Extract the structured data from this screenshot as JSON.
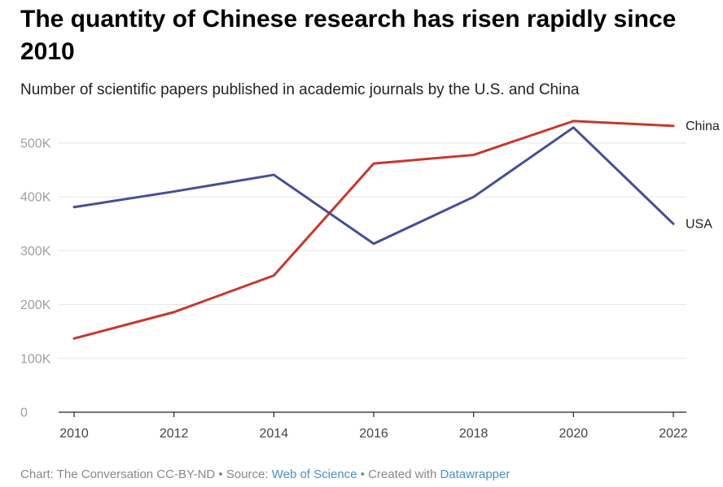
{
  "title": "The quantity of Chinese research has risen rapidly since 2010",
  "subtitle": "Number of scientific papers published in academic journals by the U.S. and China",
  "footer": {
    "prefix": "Chart: The Conversation CC-BY-ND",
    "sep1": " • Source: ",
    "source": "Web of Science",
    "sep2": " • Created with ",
    "tool": "Datawrapper"
  },
  "colors": {
    "China": "#c8372d",
    "USA": "#454f96",
    "grid": "#e6e6e6",
    "axis": "#222222"
  },
  "chart_data": {
    "type": "line",
    "title": "The quantity of Chinese research has risen rapidly since 2010",
    "subtitle": "Number of scientific papers published in academic journals by the U.S. and China",
    "xlabel": "",
    "ylabel": "",
    "x": [
      2010,
      2012,
      2014,
      2016,
      2018,
      2020,
      2022
    ],
    "xlim": [
      2010,
      2022
    ],
    "ylim": [
      0,
      550000
    ],
    "y_ticks": [
      {
        "value": 0,
        "label": "0"
      },
      {
        "value": 100000,
        "label": "100K"
      },
      {
        "value": 200000,
        "label": "200K"
      },
      {
        "value": 300000,
        "label": "300K"
      },
      {
        "value": 400000,
        "label": "400K"
      },
      {
        "value": 500000,
        "label": "500K"
      }
    ],
    "x_ticks": [
      {
        "value": 2010,
        "label": "2010"
      },
      {
        "value": 2012,
        "label": "2012"
      },
      {
        "value": 2014,
        "label": "2014"
      },
      {
        "value": 2016,
        "label": "2016"
      },
      {
        "value": 2018,
        "label": "2018"
      },
      {
        "value": 2020,
        "label": "2020"
      },
      {
        "value": 2022,
        "label": "2022"
      }
    ],
    "grid": true,
    "legend": "direct labels at line ends",
    "series": [
      {
        "name": "China",
        "values": [
          137000,
          186000,
          254000,
          462000,
          478000,
          541000,
          532000
        ]
      },
      {
        "name": "USA",
        "values": [
          381000,
          410000,
          441000,
          313000,
          400000,
          529000,
          350000
        ]
      }
    ]
  }
}
